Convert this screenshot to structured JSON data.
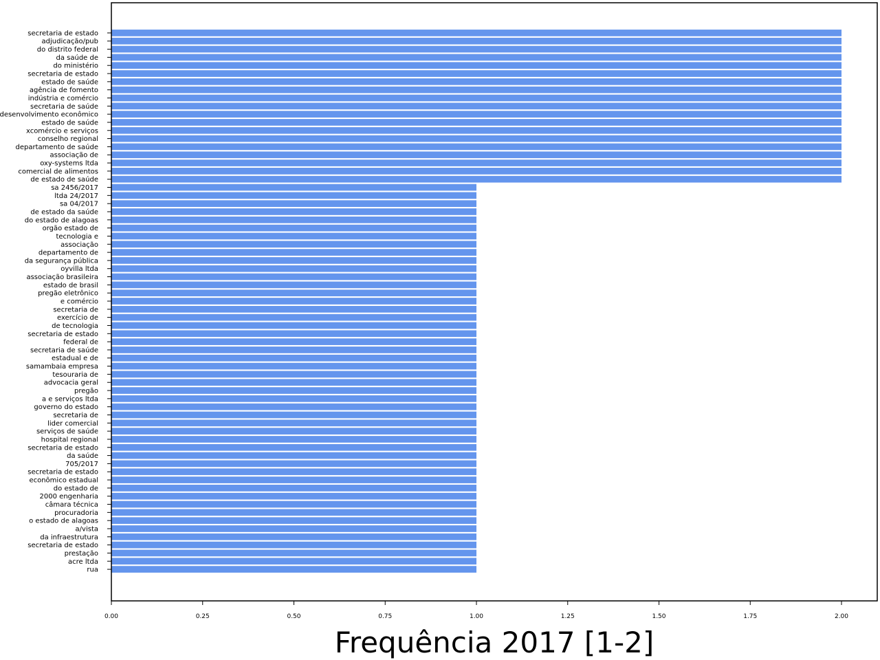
{
  "chart_data": {
    "type": "bar",
    "orientation": "horizontal",
    "title": "",
    "xlabel": "Frequência 2017 [1-2]",
    "ylabel": "",
    "xlim": [
      0,
      2.1
    ],
    "xticks": [
      "0.00",
      "0.25",
      "0.50",
      "0.75",
      "1.00",
      "1.25",
      "1.50",
      "1.75",
      "2.00"
    ],
    "grid": false,
    "bar_color": "#6495ED",
    "categories": [
      "secretaria de estado",
      "adjudicação/pub",
      "do distrito federal",
      "da saúde de",
      "do ministério",
      "secretaria de estado",
      "estado de saúde",
      "agência de fomento",
      "indústria e comércio",
      "secretaria de saúde",
      "desenvolvimento econômico",
      "estado de saúde",
      "xcomércio e serviços",
      "conselho regional",
      "departamento de saúde",
      "associação de",
      "oxy-systems ltda",
      "comercial de alimentos",
      "de estado de saúde",
      "sa 2456/2017",
      "ltda 24/2017",
      "sa 04/2017",
      "de estado da saúde",
      "do estado de alagoas",
      "orgão estado de",
      "tecnologia e",
      "associação",
      "departamento de",
      "da segurança pública",
      "oyvilla ltda",
      "associação brasileira",
      "estado de brasil",
      "pregão eletrônico",
      "e comércio",
      "secretaria de",
      "exercício de",
      "de tecnologia",
      "secretaria de estado",
      "federal de",
      "secretaria de saúde",
      "estadual e de",
      "samambaia empresa",
      "tesouraria de",
      "advocacia geral",
      "pregão",
      "a e serviços ltda",
      "governo do estado",
      "secretaria de",
      "lider comercial",
      "serviços de saúde",
      "hospital regional",
      "secretaria de estado",
      "da saúde",
      "705/2017",
      "secretaria de estado",
      "econômico estadual",
      "do estado de",
      "2000 engenharia",
      "câmara técnica",
      "procuradoria",
      "o estado de alagoas",
      "a/vista",
      "da infraestrutura",
      "secretaria de estado",
      "prestação",
      "acre ltda",
      "rua"
    ],
    "values": [
      2,
      2,
      2,
      2,
      2,
      2,
      2,
      2,
      2,
      2,
      2,
      2,
      2,
      2,
      2,
      2,
      2,
      2,
      2,
      1,
      1,
      1,
      1,
      1,
      1,
      1,
      1,
      1,
      1,
      1,
      1,
      1,
      1,
      1,
      1,
      1,
      1,
      1,
      1,
      1,
      1,
      1,
      1,
      1,
      1,
      1,
      1,
      1,
      1,
      1,
      1,
      1,
      1,
      1,
      1,
      1,
      1,
      1,
      1,
      1,
      1,
      1,
      1,
      1,
      1,
      1,
      1
    ]
  }
}
